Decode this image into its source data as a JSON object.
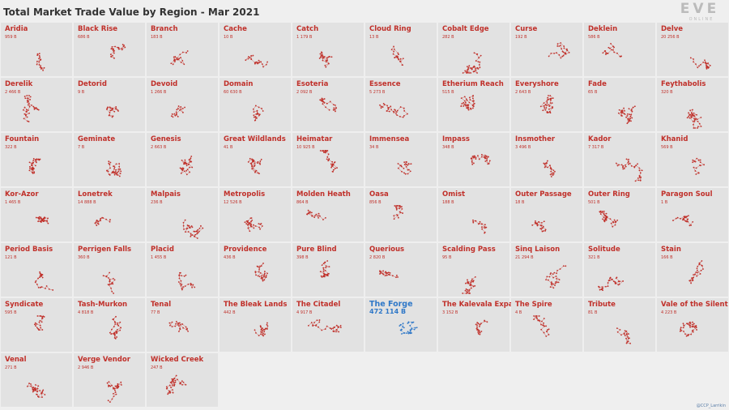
{
  "header": {
    "title": "Total Market Trade Value by Region - Mar 2021",
    "logo": "EVE",
    "logo_sub": "ONLINE"
  },
  "color": "#c0302a",
  "regions": [
    {
      "name": "Aridia",
      "value": "959 B"
    },
    {
      "name": "Black Rise",
      "value": "686 B"
    },
    {
      "name": "Branch",
      "value": "183 B"
    },
    {
      "name": "Cache",
      "value": "10 B"
    },
    {
      "name": "Catch",
      "value": "1 179 B"
    },
    {
      "name": "Cloud Ring",
      "value": "13 B"
    },
    {
      "name": "Cobalt Edge",
      "value": "282 B"
    },
    {
      "name": "Curse",
      "value": "192 B"
    },
    {
      "name": "Deklein",
      "value": "586 B"
    },
    {
      "name": "Delve",
      "value": "20 256 B"
    },
    {
      "name": "Derelik",
      "value": "2 466 B"
    },
    {
      "name": "Detorid",
      "value": "9 B"
    },
    {
      "name": "Devoid",
      "value": "1 266 B"
    },
    {
      "name": "Domain",
      "value": "60 630 B"
    },
    {
      "name": "Esoteria",
      "value": "2 092 B"
    },
    {
      "name": "Essence",
      "value": "5 273 B"
    },
    {
      "name": "Etherium Reach",
      "value": "515 B"
    },
    {
      "name": "Everyshore",
      "value": "2 643 B"
    },
    {
      "name": "Fade",
      "value": "65 B"
    },
    {
      "name": "Feythabolis",
      "value": "320 B"
    },
    {
      "name": "Fountain",
      "value": "322 B"
    },
    {
      "name": "Geminate",
      "value": "7 B"
    },
    {
      "name": "Genesis",
      "value": "2 663 B"
    },
    {
      "name": "Great Wildlands",
      "value": "41 B"
    },
    {
      "name": "Heimatar",
      "value": "10 925 B"
    },
    {
      "name": "Immensea",
      "value": "34 B"
    },
    {
      "name": "Impass",
      "value": "348 B"
    },
    {
      "name": "Insmother",
      "value": "3 496 B"
    },
    {
      "name": "Kador",
      "value": "7 317 B"
    },
    {
      "name": "Khanid",
      "value": "569 B"
    },
    {
      "name": "Kor-Azor",
      "value": "1 465 B"
    },
    {
      "name": "Lonetrek",
      "value": "14 888 B"
    },
    {
      "name": "Malpais",
      "value": "236 B"
    },
    {
      "name": "Metropolis",
      "value": "12 526 B"
    },
    {
      "name": "Molden Heath",
      "value": "864 B"
    },
    {
      "name": "Oasa",
      "value": "856 B"
    },
    {
      "name": "Omist",
      "value": "188 B"
    },
    {
      "name": "Outer Passage",
      "value": "18 B"
    },
    {
      "name": "Outer Ring",
      "value": "501 B"
    },
    {
      "name": "Paragon Soul",
      "value": "1 B"
    },
    {
      "name": "Period Basis",
      "value": "121 B"
    },
    {
      "name": "Perrigen Falls",
      "value": "360 B"
    },
    {
      "name": "Placid",
      "value": "1 455 B"
    },
    {
      "name": "Providence",
      "value": "436 B"
    },
    {
      "name": "Pure Blind",
      "value": "398 B"
    },
    {
      "name": "Querious",
      "value": "2 820 B"
    },
    {
      "name": "Scalding Pass",
      "value": "95 B"
    },
    {
      "name": "Sinq Laison",
      "value": "21 294 B"
    },
    {
      "name": "Solitude",
      "value": "321 B"
    },
    {
      "name": "Stain",
      "value": "166 B"
    },
    {
      "name": "Syndicate",
      "value": "595 B"
    },
    {
      "name": "Tash-Murkon",
      "value": "4 818 B"
    },
    {
      "name": "Tenal",
      "value": "77 B"
    },
    {
      "name": "The Bleak Lands",
      "value": "442 B"
    },
    {
      "name": "The Citadel",
      "value": "4 917 B"
    },
    {
      "name": "The Forge",
      "value": "472 114 B",
      "color": "#2f78c8"
    },
    {
      "name": "The Kalevala Expanse",
      "value": "3 152 B"
    },
    {
      "name": "The Spire",
      "value": "4 B"
    },
    {
      "name": "Tribute",
      "value": "81 B"
    },
    {
      "name": "Vale of the Silent",
      "value": "4 223 B"
    },
    {
      "name": "Venal",
      "value": "271 B"
    },
    {
      "name": "Verge Vendor",
      "value": "2 946 B"
    },
    {
      "name": "Wicked Creek",
      "value": "247 B"
    }
  ],
  "credit": "@CCP_Larrikin"
}
